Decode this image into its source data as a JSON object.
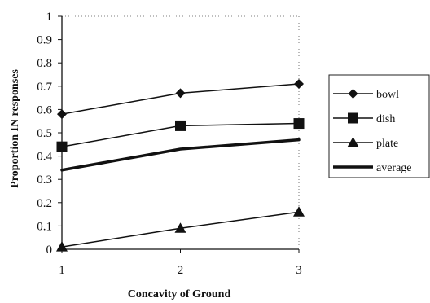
{
  "chart_data": {
    "type": "line",
    "title": "",
    "xlabel": "Concavity of Ground",
    "ylabel": "Proportion IN responses",
    "x": [
      1,
      2,
      3
    ],
    "x_tick_labels": [
      "1",
      "2",
      "3"
    ],
    "ylim": [
      0,
      1
    ],
    "y_ticks": [
      0,
      0.1,
      0.2,
      0.3,
      0.4,
      0.5,
      0.6,
      0.7,
      0.8,
      0.9,
      1
    ],
    "y_tick_labels": [
      "0",
      "0.1",
      "0.2",
      "0.3",
      "0.4",
      "0.5",
      "0.6",
      "0.7",
      "0.8",
      "0.9",
      "1"
    ],
    "grid": false,
    "legend_position": "right",
    "series": [
      {
        "name": "bowl",
        "marker": "diamond",
        "line": "thin",
        "values": [
          0.58,
          0.67,
          0.71
        ]
      },
      {
        "name": "dish",
        "marker": "square",
        "line": "thin",
        "values": [
          0.44,
          0.53,
          0.54
        ]
      },
      {
        "name": "plate",
        "marker": "triangle",
        "line": "thin",
        "values": [
          0.01,
          0.09,
          0.16
        ]
      },
      {
        "name": "average",
        "marker": "none",
        "line": "thick",
        "values": [
          0.34,
          0.43,
          0.47
        ]
      }
    ],
    "colors": {
      "line": "#111111",
      "axis": "#111111",
      "background": "#ffffff"
    }
  }
}
